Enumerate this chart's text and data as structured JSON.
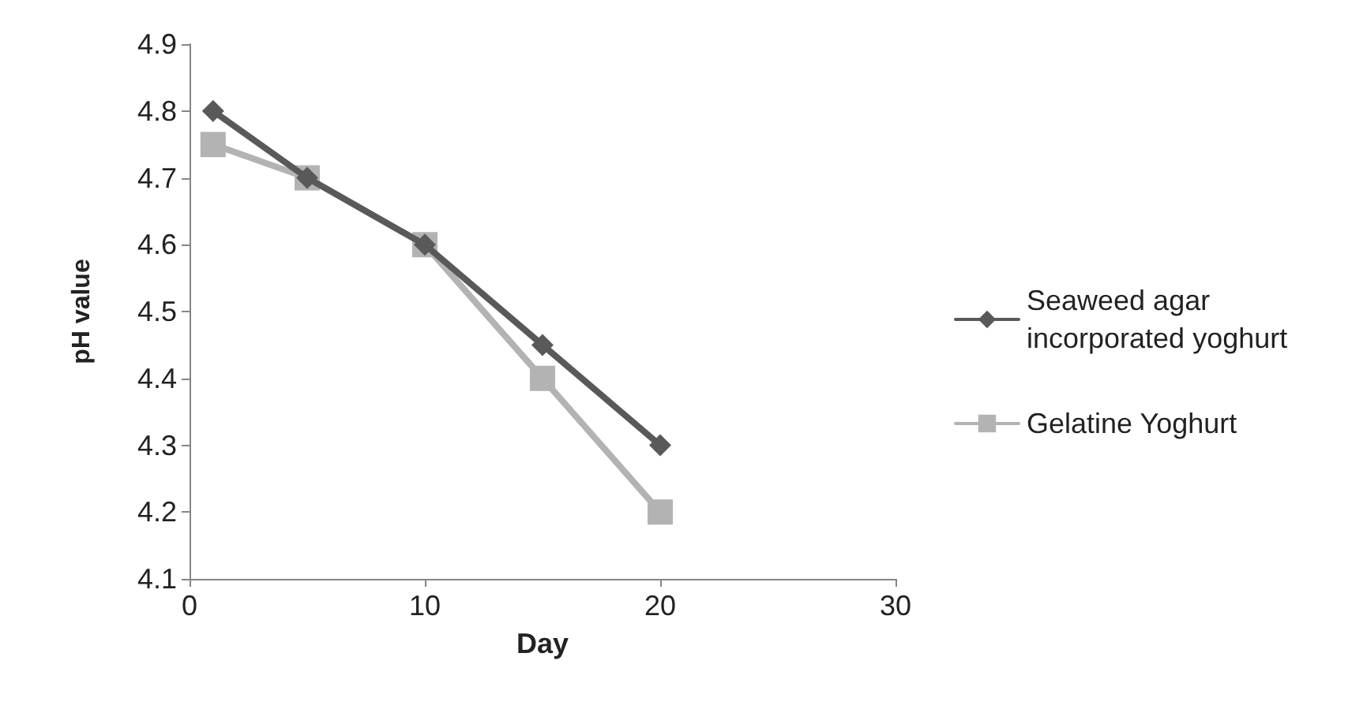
{
  "chart_data": {
    "type": "line",
    "xlabel": "Day",
    "ylabel": "pH value",
    "x": [
      1,
      5,
      10,
      15,
      20
    ],
    "series": [
      {
        "name": "Seaweed agar incorporated yoghurt",
        "color": "#595959",
        "marker": "diamond",
        "values": [
          4.8,
          4.7,
          4.6,
          4.45,
          4.3
        ]
      },
      {
        "name": "Gelatine Yoghurt",
        "color": "#b3b3b3",
        "marker": "square",
        "values": [
          4.75,
          4.7,
          4.6,
          4.4,
          4.2
        ]
      }
    ],
    "xlim": [
      0,
      30
    ],
    "xticks": [
      0,
      10,
      20,
      30
    ],
    "ylim": [
      4.1,
      4.9
    ],
    "yticks": [
      4.1,
      4.2,
      4.3,
      4.4,
      4.5,
      4.6,
      4.7,
      4.8,
      4.9
    ],
    "grid": false,
    "legend": "right",
    "line_style": "solid"
  }
}
